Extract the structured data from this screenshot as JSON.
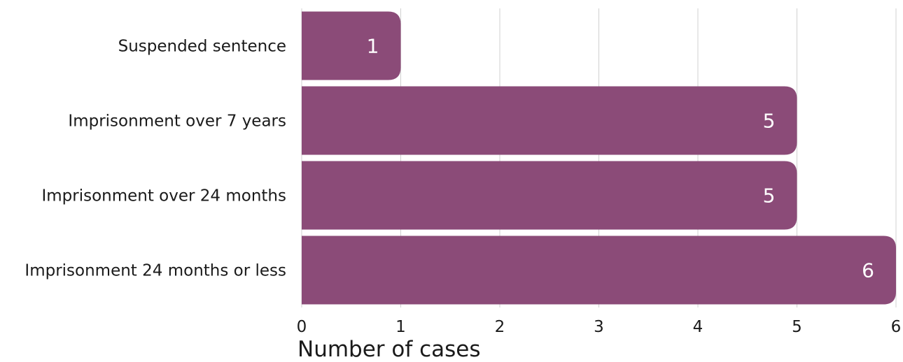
{
  "chart_data": {
    "type": "bar",
    "orientation": "horizontal",
    "categories": [
      "Suspended sentence",
      "Imprisonment over 7 years",
      "Imprisonment over 24 months",
      "Imprisonment 24 months or less"
    ],
    "values": [
      1,
      5,
      5,
      6
    ],
    "data_labels": [
      "1",
      "5",
      "5",
      "6"
    ],
    "xlabel": "Number of cases",
    "xlim": [
      0,
      6
    ],
    "xticks": [
      "0",
      "1",
      "2",
      "3",
      "4",
      "5",
      "6"
    ],
    "grid": true,
    "bar_color": "#8b4b78",
    "gridline_color": "#d0d0d0",
    "label_color": "#ffffff",
    "text_color": "#1a1a1a"
  }
}
